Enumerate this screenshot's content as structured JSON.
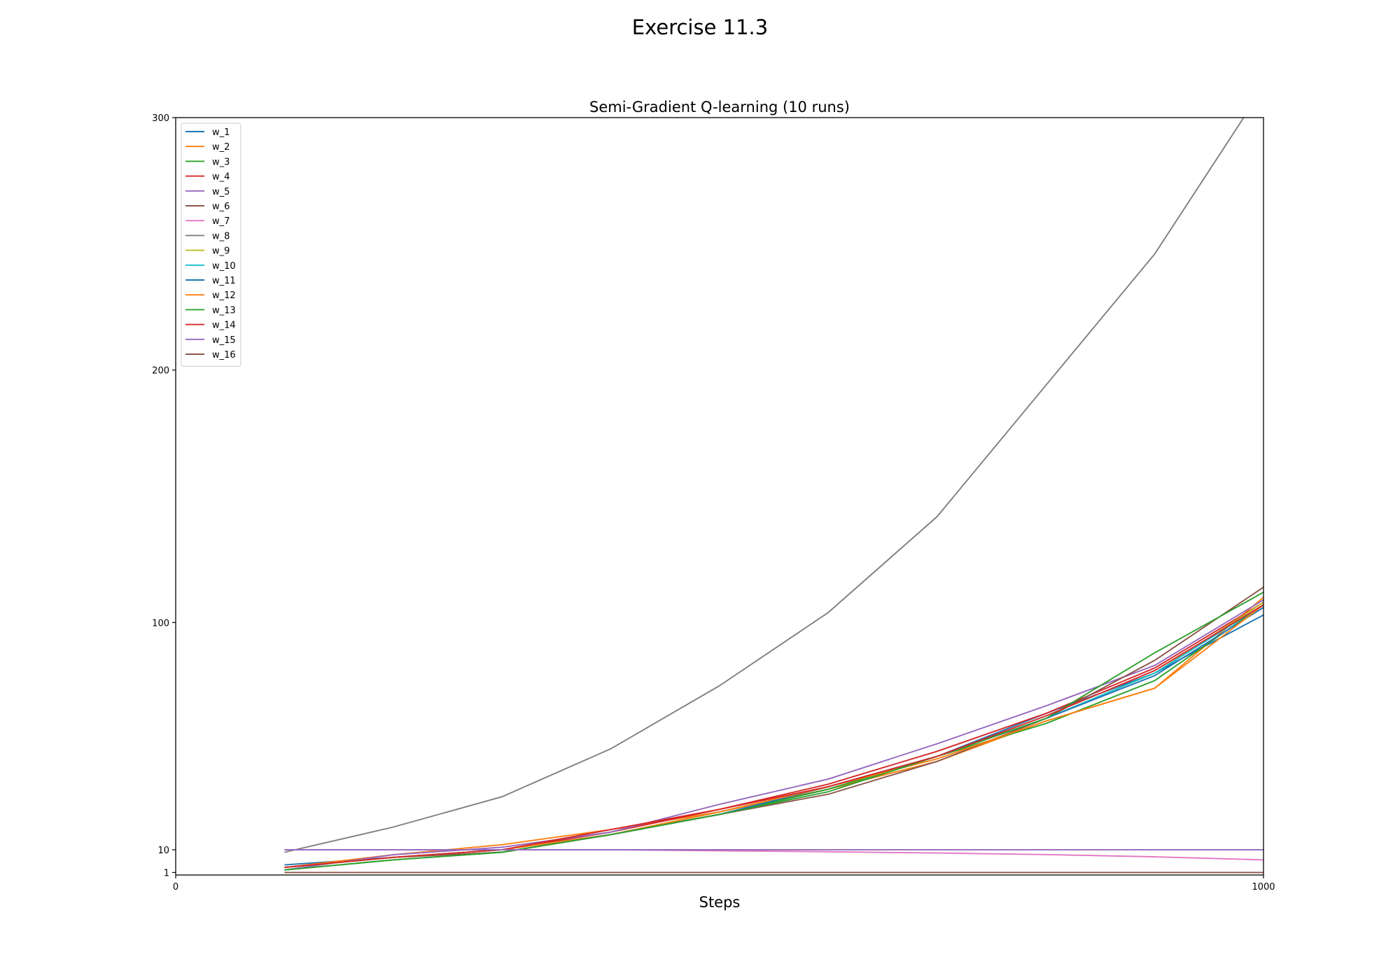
{
  "figure": {
    "title": "Exercise 11.3"
  },
  "chart_data": {
    "type": "line",
    "title": "Semi-Gradient Q-learning (10 runs)",
    "xlabel": "Steps",
    "ylabel": "",
    "xlim": [
      0,
      1000
    ],
    "ylim": [
      0,
      300
    ],
    "xticks": [
      0,
      1000
    ],
    "yticks": [
      1,
      10,
      100,
      200,
      300
    ],
    "grid": false,
    "legend": "upper-left",
    "x": [
      100,
      200,
      300,
      400,
      500,
      600,
      700,
      800,
      900,
      1000
    ],
    "series": [
      {
        "name": "w_1",
        "color": "#1f77b4",
        "values": [
          4,
          7,
          10,
          16,
          24,
          34,
          47,
          64,
          80,
          103
        ]
      },
      {
        "name": "w_2",
        "color": "#ff7f0e",
        "values": [
          3,
          8,
          12,
          18,
          25,
          34,
          45,
          61,
          74,
          110
        ]
      },
      {
        "name": "w_3",
        "color": "#2ca02c",
        "values": [
          2,
          6,
          9,
          16,
          24,
          34,
          47,
          60,
          77,
          107
        ]
      },
      {
        "name": "w_4",
        "color": "#d62728",
        "values": [
          3,
          7,
          10,
          17,
          26,
          36,
          49,
          64,
          82,
          108
        ]
      },
      {
        "name": "w_5",
        "color": "#9467bd",
        "values": [
          2,
          8,
          11,
          17,
          28,
          38,
          52,
          67,
          83,
          109
        ]
      },
      {
        "name": "w_6",
        "color": "#8c564b",
        "values": [
          3,
          7,
          9,
          16,
          24,
          32,
          45,
          62,
          85,
          114
        ]
      },
      {
        "name": "w_7",
        "color": "#e377c2",
        "values": [
          10,
          10,
          10,
          10,
          9.6,
          9.2,
          8.7,
          8.1,
          7.2,
          6.0
        ]
      },
      {
        "name": "w_8",
        "color": "#7f7f7f",
        "values": [
          9,
          19,
          31,
          50,
          75,
          104,
          142,
          194,
          246,
          312
        ]
      },
      {
        "name": "w_9",
        "color": "#bcbd22",
        "values": [
          3,
          7,
          10,
          16,
          25,
          35,
          47,
          62,
          80,
          108
        ]
      },
      {
        "name": "w_10",
        "color": "#17becf",
        "values": [
          3,
          7,
          10,
          16,
          25,
          35,
          47,
          62,
          80,
          107
        ]
      },
      {
        "name": "w_11",
        "color": "#1f77b4",
        "values": [
          3,
          7,
          10,
          16,
          24,
          35,
          47,
          62,
          79,
          106
        ]
      },
      {
        "name": "w_12",
        "color": "#ff7f0e",
        "values": [
          3,
          7,
          10,
          16,
          25,
          35,
          46,
          61,
          74,
          107
        ]
      },
      {
        "name": "w_13",
        "color": "#2ca02c",
        "values": [
          2,
          6,
          9,
          16,
          24,
          33,
          47,
          62,
          88,
          112
        ]
      },
      {
        "name": "w_14",
        "color": "#d62728",
        "values": [
          3,
          7,
          10,
          18,
          26,
          35,
          47,
          63,
          81,
          107
        ]
      },
      {
        "name": "w_15",
        "color": "#9467bd",
        "values": [
          10,
          10,
          10,
          10,
          10,
          10,
          10,
          10,
          10,
          10
        ]
      },
      {
        "name": "w_16",
        "color": "#8c564b",
        "values": [
          1,
          1,
          1,
          1,
          1,
          1,
          1,
          1,
          1,
          1
        ]
      }
    ]
  }
}
